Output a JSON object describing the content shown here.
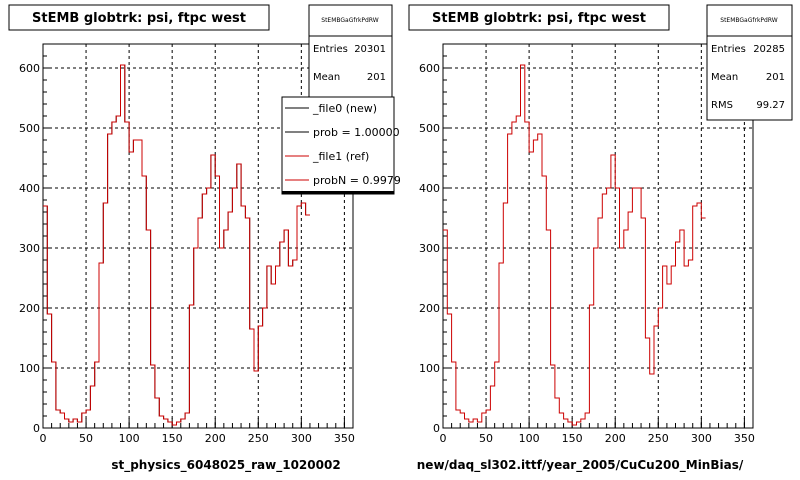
{
  "colors": {
    "new": "#000000",
    "ref": "#cc0000",
    "grid": "#000000",
    "background": "#ffffff"
  },
  "footnote": "",
  "chart_data": [
    {
      "type": "line",
      "title": "StEMB globtrk: psi, ftpc west",
      "stats_header": "StEMBGaGfrkPdRW",
      "stats": [
        {
          "label": "Entries",
          "value": "20301"
        },
        {
          "label": "Mean",
          "value": "201"
        }
      ],
      "legend": [
        {
          "label": "_file0 (new)",
          "color": "#000000"
        },
        {
          "label": "prob = 1.000000",
          "color": "#000000"
        },
        {
          "label": "_file1 (ref)",
          "color": "#cc0000"
        },
        {
          "label": "probN = 0.99795",
          "color": "#cc0000"
        }
      ],
      "xlabel": "st_physics_6048025_raw_1020002",
      "ylabel": "",
      "xlim": [
        0,
        360
      ],
      "ylim": [
        0,
        640
      ],
      "xticks": [
        0,
        50,
        100,
        150,
        200,
        250,
        300,
        350
      ],
      "yticks": [
        0,
        100,
        200,
        300,
        400,
        500,
        600
      ],
      "grid": true,
      "legend_position": "top-right",
      "bin_width": 5,
      "series": [
        {
          "name": "_file0 (new)",
          "values": [
            370,
            190,
            110,
            30,
            25,
            15,
            10,
            15,
            10,
            25,
            30,
            70,
            110,
            275,
            375,
            490,
            510,
            520,
            605,
            510,
            460,
            480,
            480,
            420,
            330,
            105,
            50,
            20,
            15,
            10,
            5,
            10,
            15,
            25,
            205,
            300,
            350,
            390,
            400,
            455,
            420,
            300,
            330,
            360,
            400,
            440,
            370,
            350,
            165,
            95,
            170,
            200,
            270,
            240,
            270,
            310,
            330,
            270,
            280,
            370,
            375,
            355
          ]
        },
        {
          "name": "_file1 (ref)",
          "values": [
            370,
            190,
            110,
            30,
            25,
            15,
            10,
            15,
            10,
            25,
            30,
            70,
            110,
            275,
            375,
            490,
            510,
            520,
            605,
            510,
            460,
            480,
            480,
            420,
            330,
            105,
            50,
            20,
            15,
            10,
            5,
            10,
            15,
            25,
            205,
            300,
            350,
            390,
            400,
            455,
            420,
            300,
            330,
            360,
            400,
            440,
            370,
            350,
            165,
            95,
            170,
            200,
            270,
            240,
            270,
            310,
            330,
            270,
            280,
            370,
            375,
            355
          ]
        }
      ]
    },
    {
      "type": "line",
      "title": "StEMB globtrk: psi, ftpc west",
      "stats_header": "StEMBGaGfrkPdRW",
      "stats": [
        {
          "label": "Entries",
          "value": "20285"
        },
        {
          "label": "Mean",
          "value": "201"
        },
        {
          "label": "RMS",
          "value": "99.27"
        }
      ],
      "legend": [],
      "xlabel": "new/daq_sl302.ittf/year_2005/CuCu200_MinBias/",
      "ylabel": "",
      "xlim": [
        0,
        360
      ],
      "ylim": [
        0,
        640
      ],
      "xticks": [
        0,
        50,
        100,
        150,
        200,
        250,
        300,
        350
      ],
      "yticks": [
        0,
        100,
        200,
        300,
        400,
        500,
        600
      ],
      "grid": true,
      "bin_width": 5,
      "series": [
        {
          "name": "",
          "values": [
            330,
            190,
            110,
            30,
            25,
            15,
            10,
            15,
            10,
            25,
            30,
            70,
            110,
            275,
            375,
            490,
            510,
            520,
            605,
            510,
            460,
            480,
            490,
            420,
            330,
            105,
            50,
            25,
            15,
            10,
            5,
            10,
            15,
            25,
            205,
            300,
            350,
            390,
            400,
            455,
            400,
            300,
            330,
            360,
            400,
            400,
            350,
            150,
            90,
            170,
            200,
            270,
            240,
            270,
            310,
            330,
            270,
            280,
            370,
            375,
            350
          ]
        }
      ]
    }
  ]
}
